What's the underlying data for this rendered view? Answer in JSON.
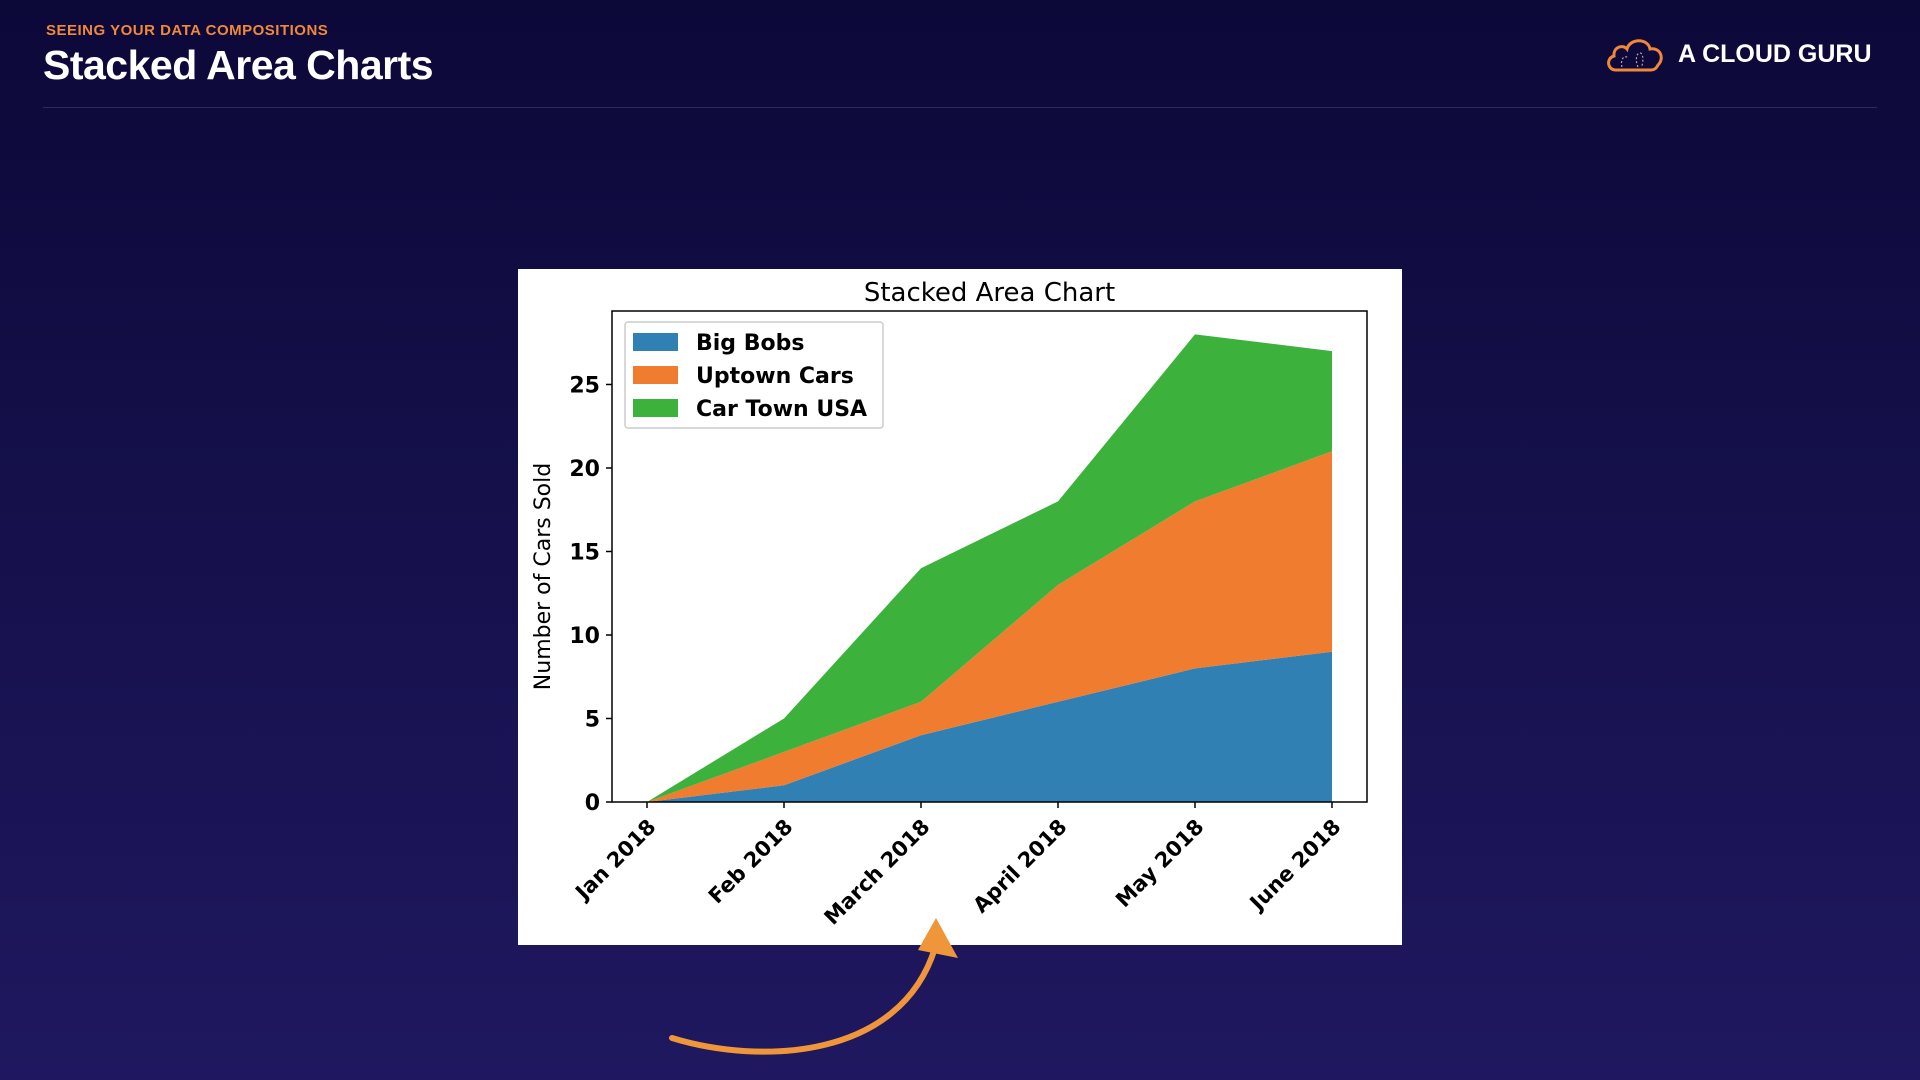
{
  "header": {
    "kicker": "SEEING YOUR DATA COMPOSITIONS",
    "title": "Stacked Area Charts"
  },
  "logo": {
    "text": "A CLOUD GURU",
    "icon": "cloud-icon",
    "color": "#f0883a"
  },
  "chart_data": {
    "type": "area",
    "stacked": true,
    "title": "Stacked Area Chart",
    "xlabel": "",
    "ylabel": "Number of Cars Sold",
    "categories": [
      "Jan 2018",
      "Feb 2018",
      "March 2018",
      "April 2018",
      "May 2018",
      "June 2018"
    ],
    "series": [
      {
        "name": "Big Bobs",
        "values": [
          0,
          1,
          4,
          6,
          8,
          9
        ],
        "color": "#3180b4"
      },
      {
        "name": "Uptown Cars",
        "values": [
          0,
          2,
          2,
          7,
          10,
          12
        ],
        "color": "#f07c30"
      },
      {
        "name": "Car Town USA",
        "values": [
          0,
          2,
          8,
          5,
          10,
          6
        ],
        "color": "#3cb13c"
      }
    ],
    "yticks": [
      0,
      5,
      10,
      15,
      20,
      25
    ],
    "ylim": [
      0,
      29.4
    ],
    "legend": "upper-left",
    "grid": false
  },
  "annotation": {
    "arrow_color": "#f0963a"
  }
}
